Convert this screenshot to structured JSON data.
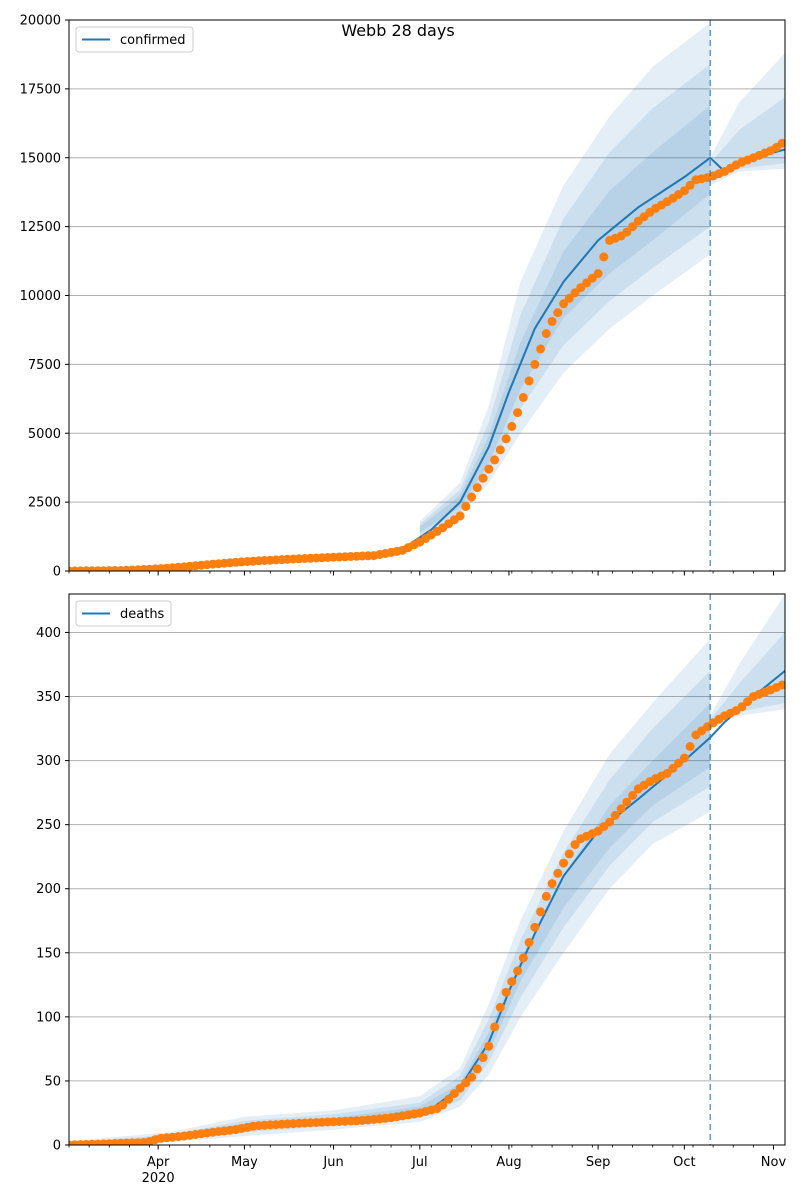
{
  "figure": {
    "title": "Webb 28 days"
  },
  "colors": {
    "model_line": "#1f77b4",
    "observed_points": "#ff7f0e",
    "band": "#1f77b4",
    "grid": "#b0b0b0",
    "forecast_marker": "#1f77b4"
  },
  "x_axis": {
    "start": "2020-03-01",
    "end": "2020-11-05",
    "forecast_date": "2020-10-10",
    "month_labels": [
      {
        "date": "2020-04-01",
        "label": "Apr",
        "year": "2020"
      },
      {
        "date": "2020-05-01",
        "label": "May",
        "year": ""
      },
      {
        "date": "2020-06-01",
        "label": "Jun",
        "year": ""
      },
      {
        "date": "2020-07-01",
        "label": "Jul",
        "year": ""
      },
      {
        "date": "2020-08-01",
        "label": "Aug",
        "year": ""
      },
      {
        "date": "2020-09-01",
        "label": "Sep",
        "year": ""
      },
      {
        "date": "2020-10-01",
        "label": "Oct",
        "year": ""
      },
      {
        "date": "2020-11-01",
        "label": "Nov",
        "year": ""
      }
    ]
  },
  "chart_data": [
    {
      "type": "line",
      "legend": "confirmed",
      "legend_position": "top-left",
      "ylim": [
        0,
        20000
      ],
      "yticks": [
        0,
        2500,
        5000,
        7500,
        10000,
        12500,
        15000,
        17500,
        20000
      ],
      "grid": "y",
      "model": {
        "name": "confirmed",
        "x": [
          "2020-03-01",
          "2020-03-25",
          "2020-04-15",
          "2020-05-01",
          "2020-05-20",
          "2020-06-10",
          "2020-06-25",
          "2020-07-05",
          "2020-07-15",
          "2020-07-25",
          "2020-08-01",
          "2020-08-10",
          "2020-08-20",
          "2020-09-01",
          "2020-09-15",
          "2020-10-01",
          "2020-10-10",
          "2020-10-15",
          "2020-10-25",
          "2020-11-05"
        ],
        "y": [
          0,
          30,
          250,
          380,
          470,
          580,
          800,
          1500,
          2500,
          4500,
          6500,
          8800,
          10500,
          12000,
          13200,
          14300,
          15000,
          14500,
          15000,
          15300
        ]
      },
      "bands": [
        {
          "x": [
            "2020-07-01",
            "2020-07-15",
            "2020-07-25",
            "2020-08-05",
            "2020-08-20",
            "2020-09-05",
            "2020-09-20",
            "2020-10-10"
          ],
          "lower": [
            1200,
            2000,
            3200,
            5000,
            7200,
            8800,
            10000,
            11500
          ],
          "upper": [
            1800,
            3200,
            6000,
            10500,
            14000,
            16500,
            18300,
            19900
          ]
        },
        {
          "x": [
            "2020-07-01",
            "2020-07-15",
            "2020-07-25",
            "2020-08-05",
            "2020-08-20",
            "2020-09-05",
            "2020-09-20",
            "2020-10-10"
          ],
          "lower": [
            1300,
            2150,
            3600,
            5900,
            8200,
            9800,
            11000,
            12500
          ],
          "upper": [
            1700,
            2950,
            5400,
            9300,
            12800,
            15200,
            16800,
            18400
          ]
        },
        {
          "x": [
            "2020-07-01",
            "2020-07-15",
            "2020-07-25",
            "2020-08-05",
            "2020-08-20",
            "2020-09-05",
            "2020-09-20",
            "2020-10-10"
          ],
          "lower": [
            1400,
            2300,
            3900,
            6600,
            9200,
            10800,
            12000,
            13700
          ],
          "upper": [
            1600,
            2750,
            4900,
            8300,
            11600,
            13800,
            15200,
            16900
          ]
        },
        {
          "x": [
            "2020-10-10",
            "2020-10-20",
            "2020-11-05"
          ],
          "lower": [
            14000,
            14500,
            14600
          ],
          "upper": [
            15000,
            17000,
            18800
          ]
        },
        {
          "x": [
            "2020-10-10",
            "2020-10-20",
            "2020-11-05"
          ],
          "lower": [
            14100,
            14600,
            14800
          ],
          "upper": [
            14800,
            16000,
            17200
          ]
        }
      ],
      "observed": {
        "x": [
          "2020-03-01",
          "2020-03-20",
          "2020-04-01",
          "2020-04-10",
          "2020-04-20",
          "2020-05-01",
          "2020-05-15",
          "2020-06-01",
          "2020-06-15",
          "2020-06-25",
          "2020-07-01",
          "2020-07-08",
          "2020-07-15",
          "2020-07-22",
          "2020-07-28",
          "2020-08-01",
          "2020-08-05",
          "2020-08-10",
          "2020-08-15",
          "2020-08-20",
          "2020-08-25",
          "2020-09-01",
          "2020-09-05",
          "2020-09-10",
          "2020-09-15",
          "2020-09-20",
          "2020-09-25",
          "2020-10-01",
          "2020-10-05",
          "2020-10-10",
          "2020-10-15",
          "2020-10-20",
          "2020-10-25",
          "2020-11-01",
          "2020-11-05"
        ],
        "y": [
          0,
          20,
          80,
          150,
          250,
          340,
          420,
          500,
          560,
          750,
          1050,
          1500,
          2000,
          3200,
          4200,
          5000,
          6000,
          7500,
          8900,
          9700,
          10200,
          10800,
          12000,
          12200,
          12700,
          13100,
          13400,
          13800,
          14200,
          14300,
          14500,
          14800,
          15000,
          15300,
          15600
        ]
      }
    },
    {
      "type": "line",
      "legend": "deaths",
      "legend_position": "top-left",
      "ylim": [
        0,
        430
      ],
      "yticks": [
        0,
        50,
        100,
        150,
        200,
        250,
        300,
        350,
        400
      ],
      "grid": "y",
      "model": {
        "name": "deaths",
        "x": [
          "2020-03-01",
          "2020-03-25",
          "2020-04-05",
          "2020-04-20",
          "2020-05-01",
          "2020-05-20",
          "2020-06-10",
          "2020-06-25",
          "2020-07-05",
          "2020-07-15",
          "2020-07-25",
          "2020-08-01",
          "2020-08-10",
          "2020-08-20",
          "2020-09-01",
          "2020-09-15",
          "2020-10-01",
          "2020-10-10",
          "2020-10-15",
          "2020-10-25",
          "2020-11-05"
        ],
        "y": [
          0,
          2,
          5,
          10,
          15,
          17,
          19,
          22,
          28,
          45,
          80,
          120,
          165,
          210,
          245,
          270,
          300,
          318,
          330,
          350,
          370
        ]
      },
      "bands": [
        {
          "x": [
            "2020-03-01",
            "2020-04-05",
            "2020-05-01",
            "2020-06-01",
            "2020-07-01",
            "2020-07-15",
            "2020-07-25",
            "2020-08-05",
            "2020-08-20",
            "2020-09-05",
            "2020-09-20",
            "2020-10-10"
          ],
          "lower": [
            0,
            2,
            7,
            12,
            18,
            30,
            55,
            100,
            150,
            200,
            235,
            260
          ],
          "upper": [
            3,
            10,
            22,
            27,
            38,
            60,
            110,
            175,
            245,
            305,
            345,
            395
          ]
        },
        {
          "x": [
            "2020-03-01",
            "2020-04-05",
            "2020-05-01",
            "2020-06-01",
            "2020-07-01",
            "2020-07-15",
            "2020-07-25",
            "2020-08-05",
            "2020-08-20",
            "2020-09-05",
            "2020-09-20",
            "2020-10-10"
          ],
          "lower": [
            0,
            3,
            10,
            15,
            21,
            35,
            65,
            115,
            170,
            218,
            252,
            280
          ],
          "upper": [
            2,
            8,
            19,
            24,
            33,
            54,
            98,
            160,
            228,
            285,
            325,
            370
          ]
        },
        {
          "x": [
            "2020-03-01",
            "2020-04-05",
            "2020-05-01",
            "2020-06-01",
            "2020-07-01",
            "2020-07-15",
            "2020-07-25",
            "2020-08-05",
            "2020-08-20",
            "2020-09-05",
            "2020-09-20",
            "2020-10-10"
          ],
          "lower": [
            0,
            4,
            12,
            17,
            24,
            40,
            72,
            128,
            185,
            232,
            265,
            295
          ],
          "upper": [
            1,
            7,
            17,
            21,
            30,
            48,
            88,
            145,
            210,
            265,
            300,
            345
          ]
        },
        {
          "x": [
            "2020-10-10",
            "2020-10-20",
            "2020-11-05"
          ],
          "lower": [
            325,
            335,
            340
          ],
          "upper": [
            335,
            375,
            430
          ]
        },
        {
          "x": [
            "2020-10-10",
            "2020-10-20",
            "2020-11-05"
          ],
          "lower": [
            326,
            338,
            345
          ],
          "upper": [
            332,
            360,
            400
          ]
        }
      ],
      "observed": {
        "x": [
          "2020-03-01",
          "2020-03-28",
          "2020-04-01",
          "2020-04-10",
          "2020-04-20",
          "2020-04-28",
          "2020-05-05",
          "2020-05-20",
          "2020-06-10",
          "2020-06-20",
          "2020-07-01",
          "2020-07-08",
          "2020-07-12",
          "2020-07-20",
          "2020-07-25",
          "2020-07-30",
          "2020-08-05",
          "2020-08-10",
          "2020-08-15",
          "2020-08-20",
          "2020-08-25",
          "2020-09-01",
          "2020-09-05",
          "2020-09-10",
          "2020-09-15",
          "2020-09-20",
          "2020-09-25",
          "2020-10-01",
          "2020-10-05",
          "2020-10-10",
          "2020-10-15",
          "2020-10-20",
          "2020-10-25",
          "2020-11-01",
          "2020-11-05"
        ],
        "y": [
          0,
          2,
          5,
          7,
          10,
          12,
          15,
          17,
          19,
          21,
          25,
          29,
          38,
          55,
          77,
          115,
          140,
          170,
          200,
          220,
          238,
          245,
          252,
          265,
          278,
          285,
          290,
          302,
          320,
          328,
          335,
          340,
          350,
          356,
          360
        ]
      }
    }
  ]
}
